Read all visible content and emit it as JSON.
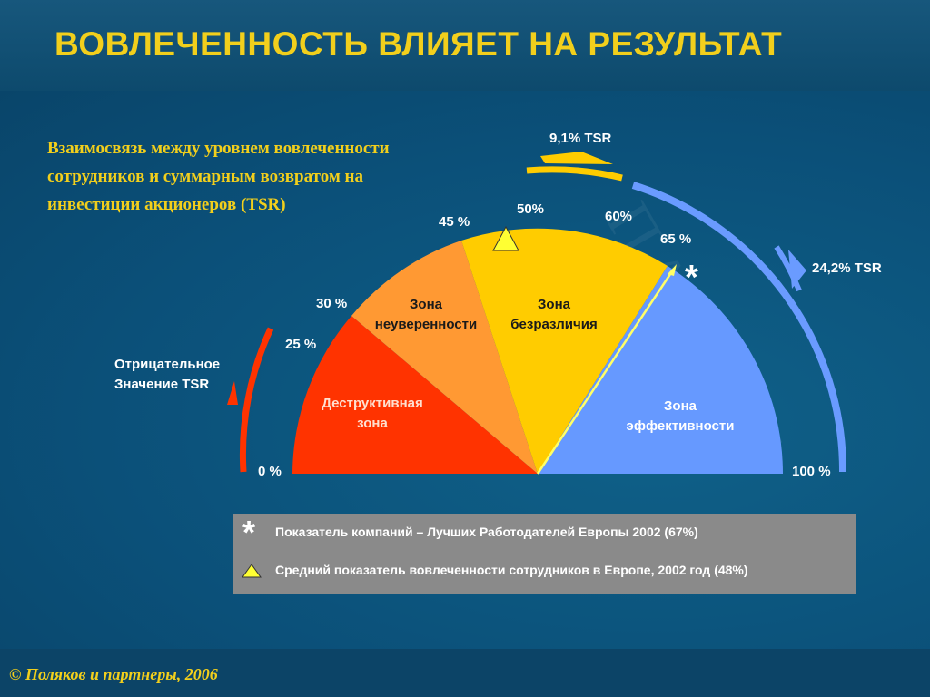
{
  "slide": {
    "title": "ВОВЛЕЧЕННОСТЬ ВЛИЯЕТ НА РЕЗУЛЬТАТ",
    "subtitle": "Взаимосвязь между уровнем вовлеченности сотрудников и суммарным возвратом на инвестиции акционеров (TSR)",
    "copyright": "© Поляков и партнеры, 2006",
    "watermark": "ПАРТНЕ"
  },
  "diagram": {
    "percent_labels": {
      "p0": "0 %",
      "p25": "25 %",
      "p30": "30 %",
      "p45": "45 %",
      "p50": "50%",
      "p60": "60%",
      "p65": "65 %",
      "p100": "100 %"
    },
    "zones": {
      "destructive": "Деструктивная зона",
      "uncertainty": "Зона неуверенности",
      "indifference": "Зона безразличия",
      "effectiveness": "Зона эффективности"
    },
    "negative_tsr": "Отрицательное Значение TSR",
    "tsr_mid": "9,1% TSR",
    "tsr_high": "24,2% TSR",
    "star_marker": "*",
    "colors": {
      "destructive": "#ff3300",
      "uncertainty": "#ff9933",
      "indifference": "#ffcc00",
      "effectiveness": "#6699ff",
      "text_yellow": "#f2cf1c"
    }
  },
  "legend": {
    "star_symbol": "*",
    "star_text": "Показатель компаний – Лучших Работодателей Европы 2002 (67%)",
    "triangle_text": "Средний показатель вовлеченности сотрудников в Европе, 2002 год (48%)"
  }
}
